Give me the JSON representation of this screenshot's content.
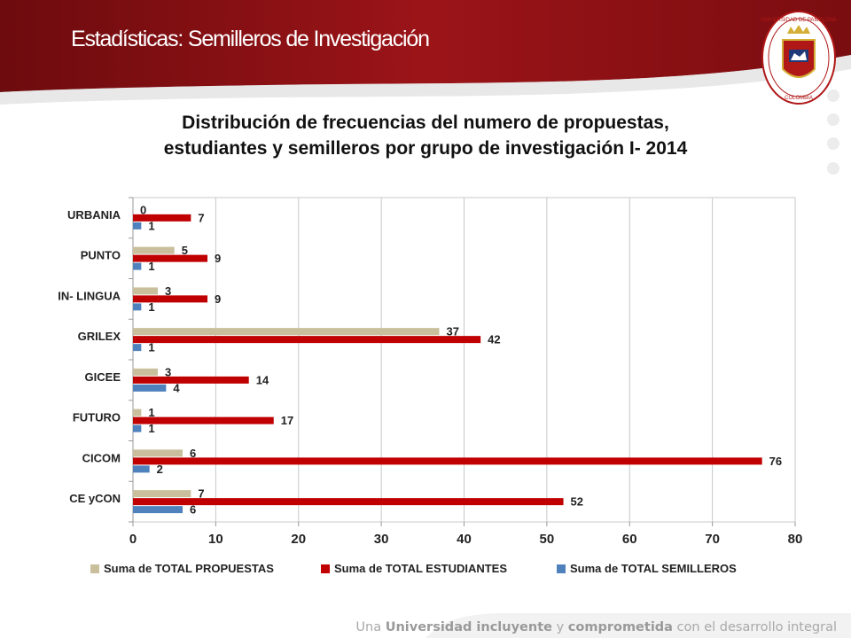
{
  "slide": {
    "title": "Estadísticas: Semilleros de Investigación",
    "logo_text": "UNIVERSIDAD DE PAMPLONA",
    "logo_country": "COLOMBIA"
  },
  "tagline": {
    "part1": "Una ",
    "part2": "Universidad incluyente",
    "part3": " y ",
    "part4": "comprometida",
    "part5": " con el desarrollo integral"
  },
  "colors": {
    "banner": "#8e1215",
    "propuestas": "#c9bf9d",
    "estudiantes": "#c00000",
    "semilleros": "#4f81bd"
  },
  "chart_data": {
    "type": "bar",
    "orientation": "horizontal",
    "title_line1": "Distribución de frecuencias del numero de propuestas,",
    "title_line2": "estudiantes y semilleros por grupo de investigación  I- 2014",
    "categories": [
      "URBANIA",
      "PUNTO",
      "IN- LINGUA",
      "GRILEX",
      "GICEE",
      "FUTURO",
      "CICOM",
      "CE yCON"
    ],
    "series": [
      {
        "name": "Suma de TOTAL PROPUESTAS",
        "values": [
          0,
          5,
          3,
          37,
          3,
          1,
          6,
          7
        ]
      },
      {
        "name": "Suma de TOTAL ESTUDIANTES",
        "values": [
          7,
          9,
          9,
          42,
          14,
          17,
          76,
          52
        ]
      },
      {
        "name": "Suma de TOTAL SEMILLEROS",
        "values": [
          1,
          1,
          1,
          1,
          4,
          1,
          2,
          6
        ]
      }
    ],
    "xlim": [
      0,
      80
    ],
    "xticks": [
      "0",
      "10",
      "20",
      "30",
      "40",
      "50",
      "60",
      "70",
      "80"
    ],
    "grid": "vertical",
    "legend_position": "bottom"
  }
}
